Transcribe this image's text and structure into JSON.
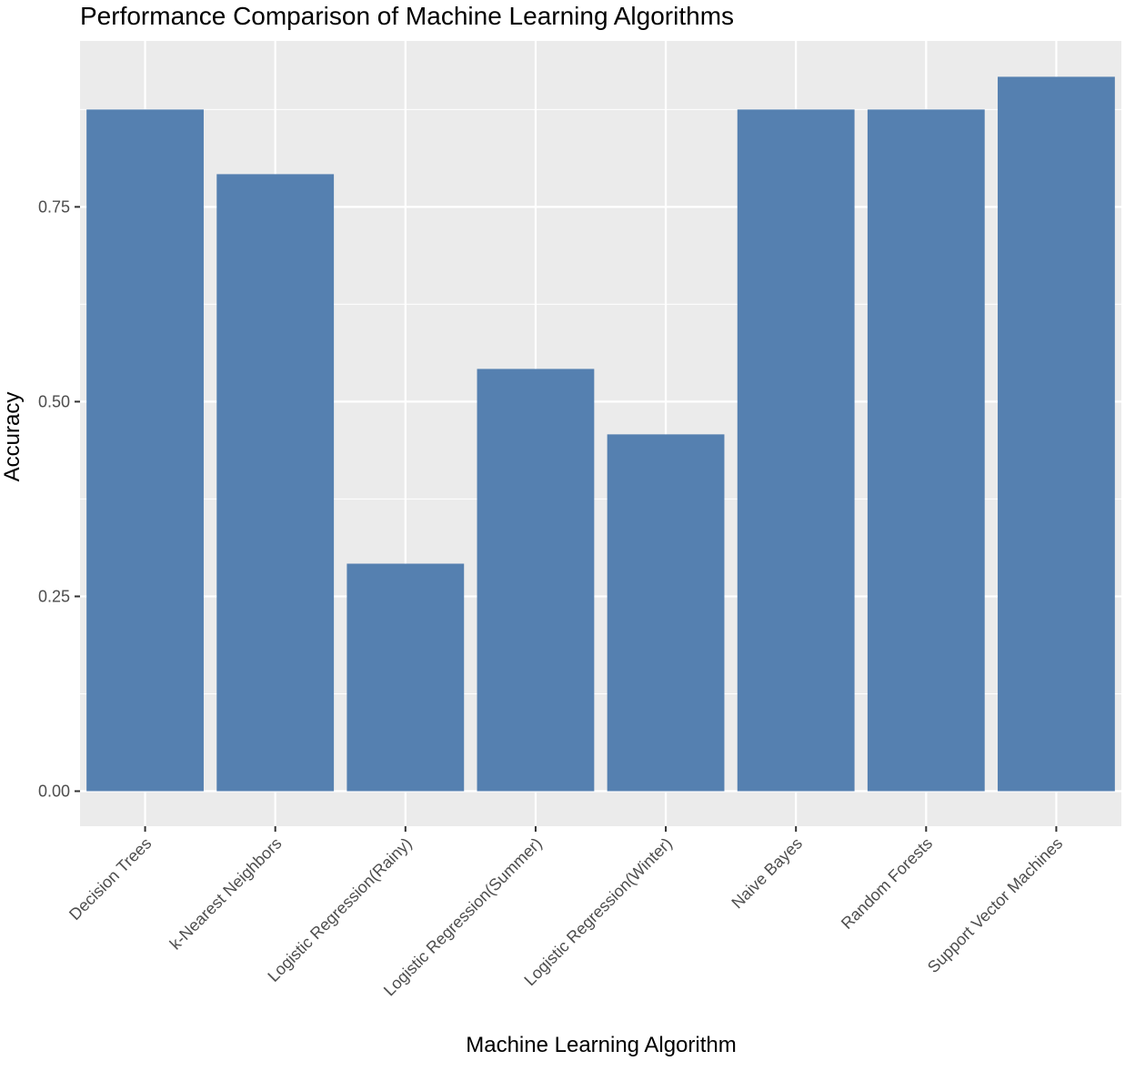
{
  "chart_data": {
    "type": "bar",
    "title": "Performance Comparison of Machine Learning Algorithms",
    "xlabel": "Machine Learning Algorithm",
    "ylabel": "Accuracy",
    "categories": [
      "Decision Trees",
      "k-Nearest Neighbors",
      "Logistic Regression(Rainy)",
      "Logistic Regression(Summer)",
      "Logistic Regression(Winter)",
      "Naive Bayes",
      "Random Forests",
      "Support Vector Machines"
    ],
    "values": [
      0.875,
      0.792,
      0.292,
      0.542,
      0.458,
      0.875,
      0.875,
      0.917
    ],
    "ylim": [
      -0.045,
      0.963
    ],
    "yticks": [
      0,
      0.25,
      0.5,
      0.75
    ],
    "ytick_labels": [
      "0.00",
      "0.25",
      "0.50",
      "0.75"
    ],
    "grid": true,
    "legend": "none",
    "colors": {
      "bar": "#5580b0",
      "panel": "#ebebeb",
      "grid": "#ffffff",
      "tick": "#333333",
      "tick_label": "#4d4d4d",
      "text": "#000000"
    }
  }
}
